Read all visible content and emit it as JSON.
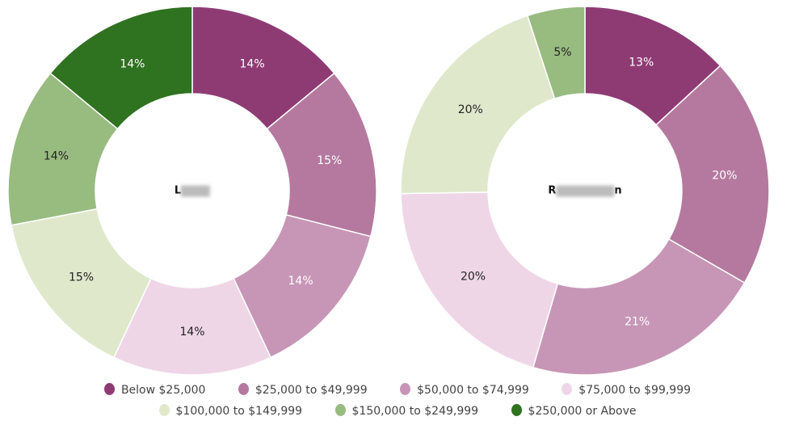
{
  "chart_data": [
    {
      "type": "pie",
      "variant": "donut",
      "center_label": "L",
      "categories": [
        "Below $25,000",
        "$25,000 to $49,999",
        "$50,000 to $74,999",
        "$75,000 to $99,999",
        "$100,000 to $149,999",
        "$150,000 to $249,999",
        "$250,000 or Above"
      ],
      "values": [
        14,
        15,
        14,
        14,
        15,
        14,
        14
      ],
      "labels": [
        "14%",
        "15%",
        "14%",
        "14%",
        "15%",
        "14%",
        "14%"
      ]
    },
    {
      "type": "pie",
      "variant": "donut",
      "center_label_start": "R",
      "center_label_end": "n",
      "categories": [
        "Below $25,000",
        "$25,000 to $49,999",
        "$50,000 to $74,999",
        "$75,000 to $99,999",
        "$100,000 to $149,999",
        "$150,000 to $249,999",
        "$250,000 or Above"
      ],
      "values": [
        13,
        20,
        21,
        20,
        20,
        5,
        0
      ],
      "labels": [
        "13%",
        "20%",
        "21%",
        "20%",
        "20%",
        "5%",
        ""
      ]
    }
  ],
  "legend": [
    {
      "label": "Below $25,000",
      "color": "#8e3b74"
    },
    {
      "label": "$25,000 to $49,999",
      "color": "#b5799f"
    },
    {
      "label": "$50,000 to $74,999",
      "color": "#c796b6"
    },
    {
      "label": "$75,000 to $99,999",
      "color": "#efd6e7"
    },
    {
      "label": "$100,000 to $149,999",
      "color": "#e0e8cc"
    },
    {
      "label": "$150,000 to $249,999",
      "color": "#98bb80"
    },
    {
      "label": "$250,000 or Above",
      "color": "#2f7220"
    }
  ]
}
